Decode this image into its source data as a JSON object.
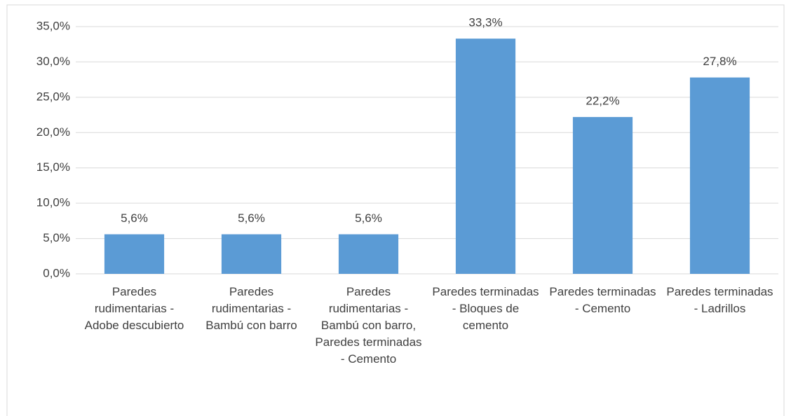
{
  "chart_data": {
    "type": "bar",
    "categories": [
      "Paredes rudimentarias - Adobe descubierto",
      "Paredes rudimentarias - Bambú con barro",
      "Paredes rudimentarias - Bambú con barro, Paredes terminadas - Cemento",
      "Paredes terminadas - Bloques de cemento",
      "Paredes terminadas - Cemento",
      "Paredes terminadas - Ladrillos"
    ],
    "values": [
      5.6,
      5.6,
      5.6,
      33.3,
      22.2,
      27.8
    ],
    "value_labels": [
      "5,6%",
      "5,6%",
      "5,6%",
      "33,3%",
      "22,2%",
      "27,8%"
    ],
    "color": "#5b9bd5",
    "ylim": [
      0,
      35
    ],
    "yticks": [
      {
        "value": 0,
        "label": "0,0%"
      },
      {
        "value": 5,
        "label": "5,0%"
      },
      {
        "value": 10,
        "label": "10,0%"
      },
      {
        "value": 15,
        "label": "15,0%"
      },
      {
        "value": 20,
        "label": "20,0%"
      },
      {
        "value": 25,
        "label": "25,0%"
      },
      {
        "value": 30,
        "label": "30,0%"
      },
      {
        "value": 35,
        "label": "35,0%"
      }
    ],
    "grid": true
  }
}
